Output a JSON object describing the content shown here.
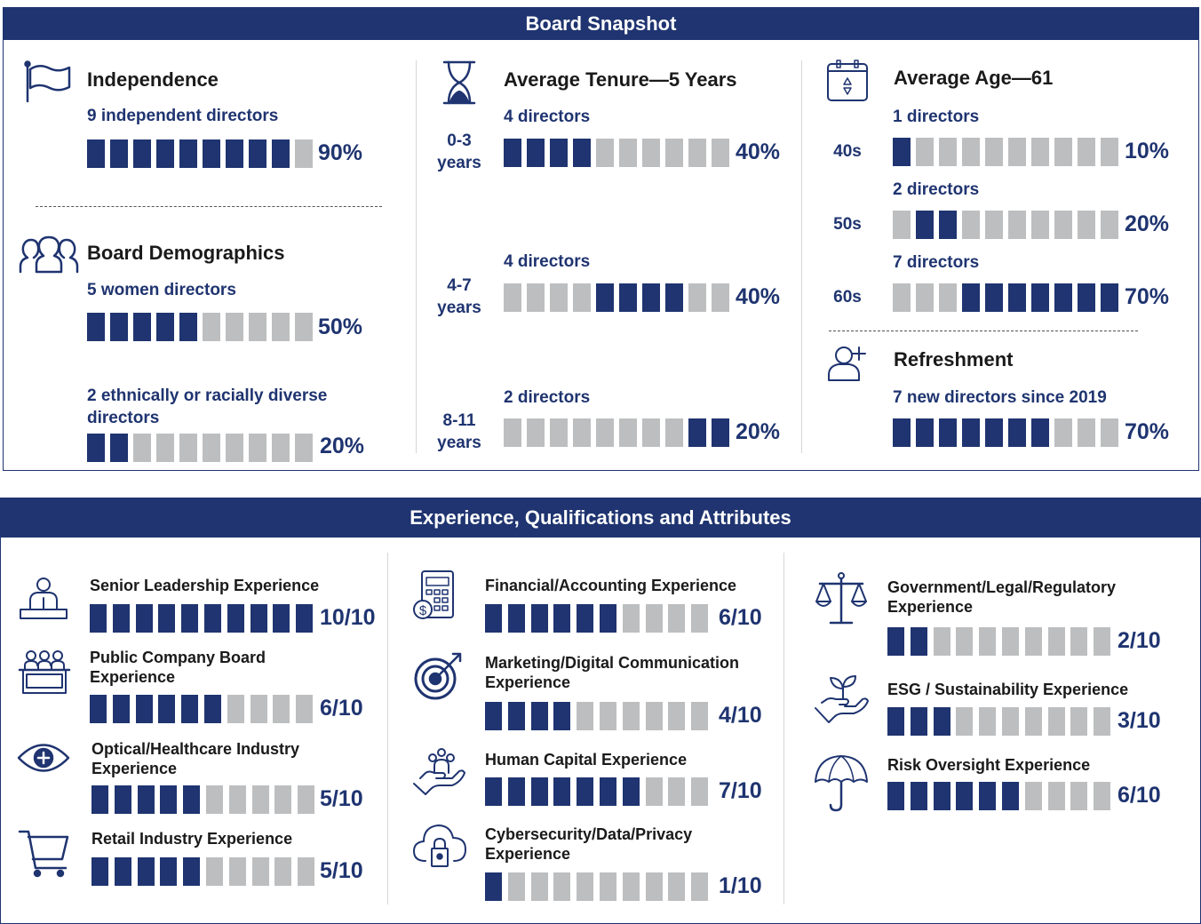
{
  "colors": {
    "accent": "#1f3470",
    "empty": "#bdbebf"
  },
  "snapshot": {
    "title": "Board Snapshot",
    "independence": {
      "title": "Independence",
      "icon": "flag-icon",
      "subtitle": "9 independent directors",
      "bar": {
        "filled": 9,
        "filled_from": 0,
        "total": 10
      },
      "pct": "90%"
    },
    "demographics": {
      "title": "Board Demographics",
      "icon": "people-group-icon",
      "women": {
        "subtitle": "5 women directors",
        "bar": {
          "filled": 5,
          "filled_from": 0,
          "total": 10
        },
        "pct": "50%"
      },
      "diverse": {
        "subtitle": "2 ethnically or racially diverse directors",
        "bar": {
          "filled": 2,
          "filled_from": 0,
          "total": 10
        },
        "pct": "20%"
      }
    },
    "tenure": {
      "title": "Average Tenure—5 Years",
      "icon": "hourglass-icon",
      "rows": [
        {
          "range": "0-3",
          "unit": "years",
          "count": "4 directors",
          "bar": {
            "filled": 4,
            "filled_from": 0,
            "total": 10
          },
          "pct": "40%"
        },
        {
          "range": "4-7",
          "unit": "years",
          "count": "4 directors",
          "bar": {
            "filled": 4,
            "filled_from": 4,
            "total": 10
          },
          "pct": "40%"
        },
        {
          "range": "8-11",
          "unit": "years",
          "count": "2 directors",
          "bar": {
            "filled": 2,
            "filled_from": 8,
            "total": 10
          },
          "pct": "20%"
        }
      ]
    },
    "age": {
      "title": "Average Age—61",
      "icon": "calendar-icon",
      "rows": [
        {
          "range": "40s",
          "count": "1 directors",
          "bar": {
            "filled": 1,
            "filled_from": 0,
            "total": 10
          },
          "pct": "10%"
        },
        {
          "range": "50s",
          "count": "2 directors",
          "bar": {
            "filled": 2,
            "filled_from": 1,
            "total": 10
          },
          "pct": "20%"
        },
        {
          "range": "60s",
          "count": "7 directors",
          "bar": {
            "filled": 7,
            "filled_from": 3,
            "total": 10
          },
          "pct": "70%"
        }
      ]
    },
    "refreshment": {
      "title": "Refreshment",
      "icon": "user-plus-icon",
      "subtitle": "7 new directors since 2019",
      "bar": {
        "filled": 7,
        "filled_from": 0,
        "total": 10
      },
      "pct": "70%"
    }
  },
  "experience": {
    "title": "Experience, Qualifications and Attributes",
    "items": [
      {
        "label": "Senior Leadership Experience",
        "icon": "podium-speaker-icon",
        "score": 10,
        "total": 10,
        "text": "10/10"
      },
      {
        "label": "Public Company Board Experience",
        "icon": "boardroom-icon",
        "score": 6,
        "total": 10,
        "text": "6/10"
      },
      {
        "label": "Optical/Healthcare Industry Experience",
        "icon": "eye-plus-icon",
        "score": 5,
        "total": 10,
        "text": "5/10"
      },
      {
        "label": "Retail Industry Experience",
        "icon": "shopping-cart-icon",
        "score": 5,
        "total": 10,
        "text": "5/10"
      },
      {
        "label": "Financial/Accounting Experience",
        "icon": "calculator-dollar-icon",
        "score": 6,
        "total": 10,
        "text": "6/10"
      },
      {
        "label": "Marketing/Digital Communication Experience",
        "icon": "target-icon",
        "score": 4,
        "total": 10,
        "text": "4/10"
      },
      {
        "label": "Human Capital Experience",
        "icon": "hand-people-icon",
        "score": 7,
        "total": 10,
        "text": "7/10"
      },
      {
        "label": "Cybersecurity/Data/Privacy Experience",
        "icon": "cloud-lock-icon",
        "score": 1,
        "total": 10,
        "text": "1/10"
      },
      {
        "label": "Government/Legal/Regulatory Experience",
        "icon": "scales-icon",
        "score": 2,
        "total": 10,
        "text": "2/10"
      },
      {
        "label": "ESG / Sustainability Experience",
        "icon": "hand-plant-icon",
        "score": 3,
        "total": 10,
        "text": "3/10"
      },
      {
        "label": "Risk Oversight Experience",
        "icon": "umbrella-icon",
        "score": 6,
        "total": 10,
        "text": "6/10"
      }
    ]
  }
}
